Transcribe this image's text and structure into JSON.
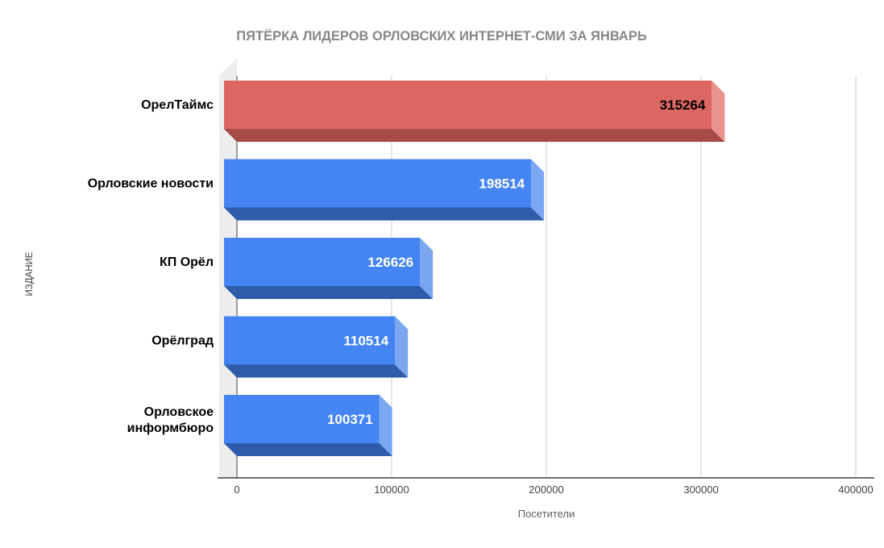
{
  "chart_data": {
    "type": "bar",
    "orientation": "horizontal",
    "effect": "3d",
    "title": "ПЯТЁРКА ЛИДЕРОВ ОРЛОВСКИХ ИНТЕРНЕТ-СМИ ЗА ЯНВАРЬ",
    "xlabel": "Посетители",
    "ylabel": "ИЗДАНИЕ",
    "categories": [
      "ОрелТаймс",
      "Орловские новости",
      "КП Орёл",
      "Орёлград",
      "Орловское информбюро"
    ],
    "values": [
      315264,
      198514,
      126626,
      110514,
      100371
    ],
    "value_labels": [
      "315264",
      "198514",
      "126626",
      "110514",
      "100371"
    ],
    "bars": [
      {
        "category": "ОрелТаймс",
        "value": 315264,
        "color_front": "#dc6661",
        "color_side": "#e9938f",
        "color_bottom": "#a74b48",
        "value_label_color": "#000000"
      },
      {
        "category": "Орловские новости",
        "value": 198514,
        "color_front": "#4484f3",
        "color_side": "#7ba7f0",
        "color_bottom": "#2e5cab",
        "value_label_color": "#ffffff"
      },
      {
        "category": "КП Орёл",
        "value": 126626,
        "color_front": "#4484f3",
        "color_side": "#7ba7f0",
        "color_bottom": "#2e5cab",
        "value_label_color": "#ffffff"
      },
      {
        "category": "Орёлград",
        "value": 110514,
        "color_front": "#4484f3",
        "color_side": "#7ba7f0",
        "color_bottom": "#2e5cab",
        "value_label_color": "#ffffff"
      },
      {
        "category": "Орловское информбюро",
        "value": 100371,
        "color_front": "#4484f3",
        "color_side": "#7ba7f0",
        "color_bottom": "#2e5cab",
        "value_label_color": "#ffffff"
      }
    ],
    "xaxis": {
      "min": 0,
      "max": 400000,
      "ticks": [
        0,
        100000,
        200000,
        300000,
        400000
      ],
      "tick_labels": [
        "0",
        "100000",
        "200000",
        "300000",
        "400000"
      ]
    },
    "grid": true,
    "legend": false,
    "colors": {
      "background": "#ffffff",
      "gridline": "#cccccc",
      "zero_line": "#424242",
      "axis_line": "#424242",
      "wall": "#ededed",
      "title": "#878787",
      "tick_label": "#424242",
      "category_label": "#000000"
    }
  }
}
